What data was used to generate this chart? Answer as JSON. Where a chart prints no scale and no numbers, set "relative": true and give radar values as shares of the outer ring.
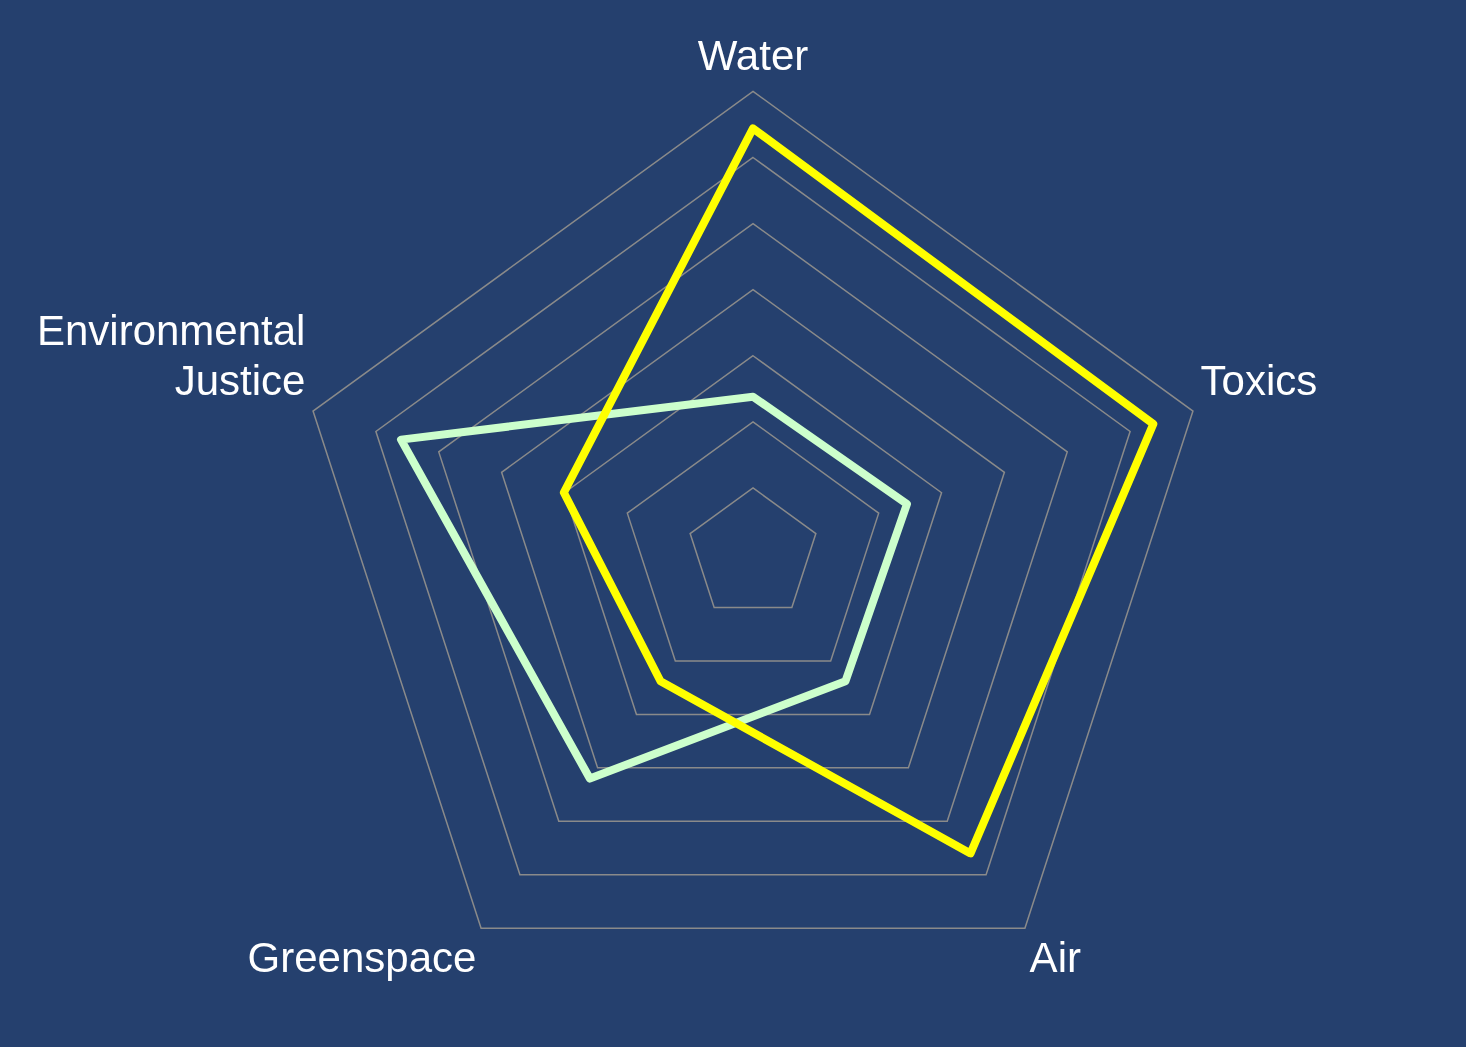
{
  "chart_data": {
    "type": "radar",
    "relative": true,
    "categories": [
      "Water",
      "Toxics",
      "Air",
      "Greenspace",
      "Environmental Justice"
    ],
    "series": [
      {
        "color": "#ffff00",
        "values": [
          0.92,
          0.91,
          0.8,
          0.34,
          0.43
        ]
      },
      {
        "color": "#ccffcc",
        "values": [
          0.34,
          0.35,
          0.34,
          0.6,
          0.8
        ]
      }
    ],
    "grid": true,
    "legend": false,
    "marker": "none",
    "line_style": "solid"
  }
}
